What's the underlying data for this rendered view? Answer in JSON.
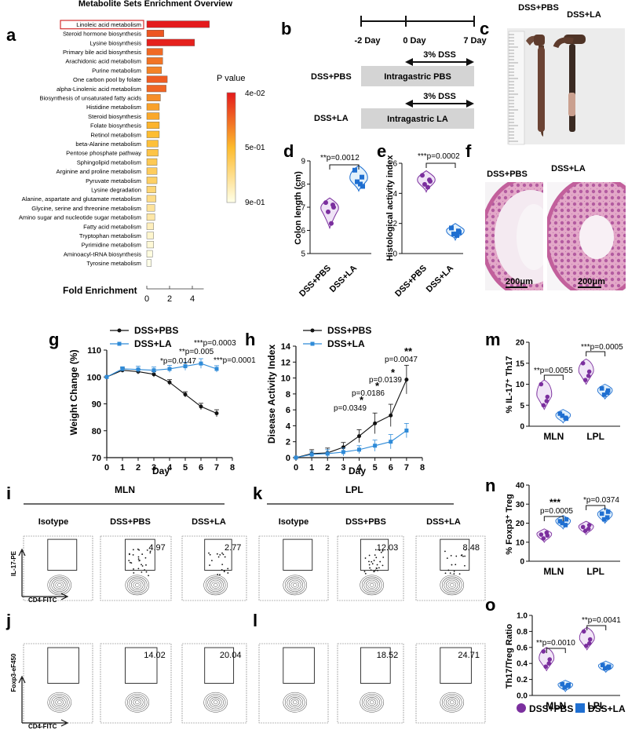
{
  "figure": {
    "title": "Metabolite Sets Enrichment Overview",
    "panel_letters": {
      "a": "a",
      "b": "b",
      "c": "c",
      "d": "d",
      "e": "e",
      "f": "f",
      "g": "g",
      "h": "h",
      "i": "i",
      "j": "j",
      "k": "k",
      "l": "l",
      "m": "m",
      "n": "n",
      "o": "o"
    },
    "legend_bottom": {
      "pbs": "DSS+PBS",
      "la": "DSS+LA"
    }
  },
  "colors": {
    "pbs": "#7b2f9e",
    "la": "#1f6fd1",
    "grey": "#6e6e6e"
  },
  "panel_a": {
    "xlabel": "Fold Enrichment",
    "ticks": [
      "0",
      "2",
      "4"
    ],
    "colorbar_title": "P value",
    "colorbar_ticks": [
      "4e-02",
      "5e-01",
      "9e-01"
    ],
    "highlighted": "Linoleic acid metabolism"
  },
  "panel_b": {
    "days": [
      "-2 Day",
      "0 Day",
      "7 Day"
    ],
    "dss": "3% DSS",
    "groups": [
      {
        "name": "DSS+PBS",
        "treatment": "Intragastric PBS"
      },
      {
        "name": "DSS+LA",
        "treatment": "Intragastric LA"
      }
    ]
  },
  "panel_c": {
    "labels": [
      "DSS+PBS",
      "DSS+LA"
    ]
  },
  "panel_d": {
    "ylabel": "Colon length (cm)",
    "stat": "**p=0.0012",
    "yticks": [
      "5",
      "6",
      "7",
      "8",
      "9"
    ]
  },
  "panel_e": {
    "ylabel": "Histological activity index",
    "stat": "***p=0.0002",
    "yticks": [
      "0",
      "2",
      "4",
      "6"
    ]
  },
  "panel_f": {
    "labels": [
      "DSS+PBS",
      "DSS+LA"
    ],
    "scale": "200μm"
  },
  "panel_g": {
    "ylabel": "Weight Change (%)",
    "xlabel": "Day",
    "yticks": [
      "70",
      "80",
      "90",
      "100",
      "110"
    ],
    "xticks": [
      "0",
      "1",
      "2",
      "3",
      "4",
      "5",
      "6",
      "7",
      "8"
    ],
    "legend": [
      "DSS+PBS",
      "DSS+LA"
    ],
    "annotations": [
      "*p=0.0147",
      "**p=0.005",
      "***p=0.0003",
      "***p=0.0001"
    ]
  },
  "panel_h": {
    "ylabel": "Disease Activity Index",
    "xlabel": "Day",
    "yticks": [
      "0",
      "2",
      "4",
      "6",
      "8",
      "10",
      "12",
      "14"
    ],
    "xticks": [
      "0",
      "1",
      "2",
      "3",
      "4",
      "5",
      "6",
      "7",
      "8"
    ],
    "legend": [
      "DSS+PBS",
      "DSS+LA"
    ],
    "annotations": [
      "p=0.0349",
      "*",
      "p=0.0186",
      "*",
      "p=0.0139",
      "*",
      "p=0.0047",
      "**"
    ]
  },
  "panel_m": {
    "ylabel": "% IL-17⁺ Th17",
    "groups": [
      "MLN",
      "LPL"
    ],
    "yticks": [
      "0",
      "5",
      "10",
      "15",
      "20"
    ],
    "stats": [
      "**p=0.0055",
      "***p=0.0005"
    ]
  },
  "panel_n": {
    "ylabel": "% Foxp3⁺ Treg",
    "groups": [
      "MLN",
      "LPL"
    ],
    "yticks": [
      "0",
      "10",
      "20",
      "30",
      "40"
    ],
    "stats": [
      "***",
      "p=0.0005",
      "*p=0.0374"
    ]
  },
  "panel_o": {
    "ylabel": "Th17/Treg Ratio",
    "groups": [
      "MLN",
      "LPL"
    ],
    "yticks": [
      "0.0",
      "0.2",
      "0.4",
      "0.6",
      "0.8",
      "1.0"
    ],
    "stats": [
      "**p=0.0010",
      "**p=0.0041"
    ]
  },
  "flow": {
    "group_mln": "MLN",
    "group_lpl": "LPL",
    "columns": [
      "Isotype",
      "DSS+PBS",
      "DSS+LA",
      "Isotype",
      "DSS+PBS",
      "DSS+LA"
    ],
    "row_i_axis": "IL-17-PE",
    "row_j_axis": "Foxp3-eF450",
    "x_axis": "CD4-FITC",
    "row_i_values": [
      "",
      "4.97",
      "2.77",
      "",
      "12.03",
      "8.48"
    ],
    "row_j_values": [
      "",
      "14.02",
      "20.04",
      "",
      "18.52",
      "24.71"
    ]
  },
  "chart_data": [
    {
      "id": "a",
      "type": "bar",
      "title": "Metabolite Sets Enrichment Overview",
      "xlabel": "Fold Enrichment",
      "orientation": "horizontal",
      "categories": [
        "Linoleic acid metabolism",
        "Steroid hormone biosynthesis",
        "Lysine biosynthesis",
        "Primary bile acid biosynthesis",
        "Arachidonic acid metabolism",
        "Purine metabolism",
        "One carbon pool by folate",
        "alpha-Linolenic acid metabolism",
        "Biosynthesis of unsaturated fatty acids",
        "Histidine metabolism",
        "Steroid biosynthesis",
        "Folate biosynthesis",
        "Retinol metabolism",
        "beta-Alanine metabolism",
        "Pentose phosphate pathway",
        "Sphingolipid metabolism",
        "Arginine and proline metabolism",
        "Pyruvate metabolism",
        "Lysine degradation",
        "Alanine, aspartate and glutamate metabolism",
        "Glycine, serine and threonine metabolism",
        "Amino sugar and nucleotide sugar metabolism",
        "Fatty acid metabolism",
        "Tryptophan metabolism",
        "Pyrimidine metabolism",
        "Aminoacyl-tRNA biosynthesis",
        "Tyrosine metabolism"
      ],
      "values": [
        5.5,
        1.5,
        4.2,
        1.4,
        1.4,
        1.3,
        1.8,
        1.7,
        1.2,
        1.1,
        1.1,
        1.1,
        1.1,
        1.0,
        1.0,
        0.9,
        0.9,
        0.9,
        0.8,
        0.8,
        0.7,
        0.7,
        0.6,
        0.6,
        0.6,
        0.5,
        0.4
      ],
      "pvalues": [
        0.04,
        0.2,
        0.06,
        0.25,
        0.28,
        0.32,
        0.22,
        0.24,
        0.35,
        0.4,
        0.42,
        0.45,
        0.48,
        0.5,
        0.53,
        0.56,
        0.58,
        0.6,
        0.64,
        0.68,
        0.72,
        0.75,
        0.8,
        0.84,
        0.86,
        0.88,
        0.9
      ]
    },
    {
      "id": "d",
      "type": "scatter",
      "ylabel": "Colon length (cm)",
      "ylim": [
        5,
        9
      ],
      "categories": [
        "DSS+PBS",
        "DSS+LA"
      ],
      "series": [
        {
          "name": "DSS+PBS",
          "values": [
            7.2,
            7.1,
            6.8,
            6.3,
            7.0
          ]
        },
        {
          "name": "DSS+LA",
          "values": [
            8.6,
            8.3,
            8.1,
            8.0,
            7.9
          ]
        }
      ]
    },
    {
      "id": "e",
      "type": "scatter",
      "ylabel": "Histological activity index",
      "ylim": [
        0,
        6
      ],
      "categories": [
        "DSS+PBS",
        "DSS+LA"
      ],
      "series": [
        {
          "name": "DSS+PBS",
          "values": [
            5.2,
            4.9,
            4.6,
            4.4,
            4.8
          ]
        },
        {
          "name": "DSS+LA",
          "values": [
            1.7,
            1.5,
            1.3,
            1.2,
            1.4
          ]
        }
      ]
    },
    {
      "id": "g",
      "type": "line",
      "xlabel": "Day",
      "ylabel": "Weight Change (%)",
      "xlim": [
        0,
        8
      ],
      "ylim": [
        70,
        110
      ],
      "x": [
        0,
        1,
        2,
        3,
        4,
        5,
        6,
        7
      ],
      "series": [
        {
          "name": "DSS+PBS",
          "values": [
            100,
            102.5,
            102,
            101,
            98,
            93.5,
            89,
            86.5
          ]
        },
        {
          "name": "DSS+LA",
          "values": [
            100,
            103,
            102.8,
            102.5,
            103,
            104,
            105,
            103
          ]
        }
      ]
    },
    {
      "id": "h",
      "type": "line",
      "xlabel": "Day",
      "ylabel": "Disease Activity Index",
      "xlim": [
        0,
        8
      ],
      "ylim": [
        0,
        14
      ],
      "x": [
        0,
        1,
        2,
        3,
        4,
        5,
        6,
        7
      ],
      "series": [
        {
          "name": "DSS+PBS",
          "values": [
            0,
            0.5,
            0.6,
            1.3,
            2.7,
            4.3,
            5.3,
            9.8
          ]
        },
        {
          "name": "DSS+LA",
          "values": [
            0,
            0.4,
            0.5,
            0.7,
            1.0,
            1.5,
            2.0,
            3.4
          ]
        }
      ]
    },
    {
      "id": "m",
      "type": "scatter",
      "ylabel": "% IL-17⁺ Th17",
      "ylim": [
        0,
        20
      ],
      "categories": [
        "MLN",
        "LPL"
      ],
      "series": [
        {
          "name": "DSS+PBS",
          "values": [
            [
              10,
              6,
              5,
              7
            ],
            [
              15,
              12,
              11,
              13
            ]
          ]
        },
        {
          "name": "DSS+LA",
          "values": [
            [
              3,
              2,
              2.5,
              1.8
            ],
            [
              9,
              8,
              7.5,
              8.5
            ]
          ]
        }
      ]
    },
    {
      "id": "n",
      "type": "scatter",
      "ylabel": "% Foxp3⁺ Treg",
      "ylim": [
        0,
        40
      ],
      "categories": [
        "MLN",
        "LPL"
      ],
      "series": [
        {
          "name": "DSS+PBS",
          "values": [
            [
              14,
              15,
              12,
              13.5
            ],
            [
              18,
              17,
              16,
              19
            ]
          ]
        },
        {
          "name": "DSS+LA",
          "values": [
            [
              21,
              19,
              20,
              22
            ],
            [
              25,
              23,
              22,
              26
            ]
          ]
        }
      ]
    },
    {
      "id": "o",
      "type": "scatter",
      "ylabel": "Th17/Treg Ratio",
      "ylim": [
        0,
        1.0
      ],
      "categories": [
        "MLN",
        "LPL"
      ],
      "series": [
        {
          "name": "DSS+PBS",
          "values": [
            [
              0.55,
              0.4,
              0.36,
              0.45
            ],
            [
              0.8,
              0.65,
              0.62,
              0.7
            ]
          ]
        },
        {
          "name": "DSS+LA",
          "values": [
            [
              0.14,
              0.12,
              0.1,
              0.13
            ],
            [
              0.38,
              0.35,
              0.34,
              0.36
            ]
          ]
        }
      ]
    }
  ]
}
